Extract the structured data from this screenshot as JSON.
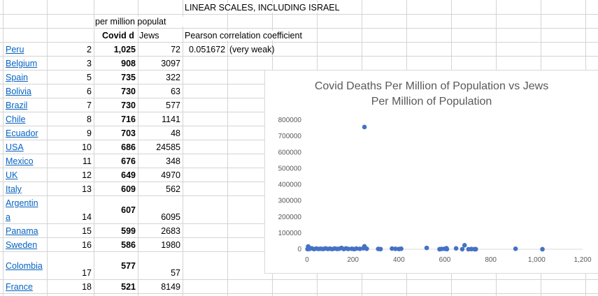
{
  "sheet": {
    "header_title": "LINEAR SCALES, INCLUDING ISRAEL",
    "header_per_million": "per million populat",
    "col_covid": "Covid d",
    "col_jews": "Jews",
    "correlation_label": "Pearson correlation coefficient",
    "correlation_value": "0.051672",
    "correlation_note": "(very weak)",
    "rows": [
      {
        "country": "Peru",
        "rank": "2",
        "covid": "1,025",
        "jews": "72"
      },
      {
        "country": "Belgium",
        "rank": "3",
        "covid": "908",
        "jews": "3097"
      },
      {
        "country": "Spain",
        "rank": "5",
        "covid": "735",
        "jews": "322"
      },
      {
        "country": "Bolivia",
        "rank": "6",
        "covid": "730",
        "jews": "63"
      },
      {
        "country": "Brazil",
        "rank": "7",
        "covid": "730",
        "jews": "577"
      },
      {
        "country": "Chile",
        "rank": "8",
        "covid": "716",
        "jews": "1141"
      },
      {
        "country": "Ecuador",
        "rank": "9",
        "covid": "703",
        "jews": "48"
      },
      {
        "country": "USA",
        "rank": "10",
        "covid": "686",
        "jews": "24585"
      },
      {
        "country": "Mexico",
        "rank": "11",
        "covid": "676",
        "jews": "348"
      },
      {
        "country": "UK",
        "rank": "12",
        "covid": "649",
        "jews": "4970"
      },
      {
        "country": "Italy",
        "rank": "13",
        "covid": "609",
        "jews": "562"
      },
      {
        "country": "Argentin",
        "country_cont": "a",
        "rank": "14",
        "covid": "607",
        "jews": "6095"
      },
      {
        "country": "Panama",
        "rank": "15",
        "covid": "599",
        "jews": "2683"
      },
      {
        "country": "Sweden",
        "rank": "16",
        "covid": "586",
        "jews": "1980"
      },
      {
        "country": "Colombia",
        "rank": "17",
        "covid": "577",
        "jews": "57"
      },
      {
        "country": "France",
        "rank": "18",
        "covid": "521",
        "jews": "8149"
      }
    ]
  },
  "chart_data": {
    "type": "scatter",
    "title": "Covid Deaths Per Million of Population vs Jews Per Million of Population",
    "title_line1": "Covid Deaths Per Million of Population vs Jews",
    "title_line2": "Per Million of Population",
    "xlim": [
      0,
      1200
    ],
    "ylim": [
      0,
      800000
    ],
    "x_ticks": [
      "0",
      "200",
      "400",
      "600",
      "800",
      "1,000",
      "1,200"
    ],
    "y_ticks": [
      "0",
      "100000",
      "200000",
      "300000",
      "400000",
      "500000",
      "600000",
      "700000",
      "800000"
    ],
    "point_color": "#4472c4",
    "points": [
      [
        1025,
        72
      ],
      [
        908,
        3097
      ],
      [
        735,
        322
      ],
      [
        730,
        63
      ],
      [
        730,
        577
      ],
      [
        716,
        1141
      ],
      [
        703,
        48
      ],
      [
        686,
        24585
      ],
      [
        676,
        348
      ],
      [
        649,
        4970
      ],
      [
        609,
        562
      ],
      [
        607,
        6095
      ],
      [
        599,
        2683
      ],
      [
        586,
        1980
      ],
      [
        577,
        57
      ],
      [
        521,
        8149
      ],
      [
        250,
        757000
      ],
      [
        410,
        3000
      ],
      [
        400,
        1500
      ],
      [
        385,
        2500
      ],
      [
        370,
        4000
      ],
      [
        320,
        1000
      ],
      [
        310,
        2000
      ],
      [
        260,
        3000
      ],
      [
        250,
        18000
      ],
      [
        245,
        6000
      ],
      [
        230,
        2500
      ],
      [
        215,
        4000
      ],
      [
        205,
        1000
      ],
      [
        195,
        3000
      ],
      [
        180,
        2000
      ],
      [
        170,
        5000
      ],
      [
        160,
        1500
      ],
      [
        150,
        8000
      ],
      [
        140,
        3000
      ],
      [
        130,
        2000
      ],
      [
        120,
        4500
      ],
      [
        110,
        1000
      ],
      [
        100,
        3500
      ],
      [
        90,
        2000
      ],
      [
        80,
        5000
      ],
      [
        70,
        1500
      ],
      [
        60,
        3000
      ],
      [
        50,
        2000
      ],
      [
        40,
        4000
      ],
      [
        30,
        1000
      ],
      [
        20,
        6000
      ],
      [
        10,
        2000
      ],
      [
        5,
        17000
      ],
      [
        2,
        1000
      ]
    ]
  }
}
